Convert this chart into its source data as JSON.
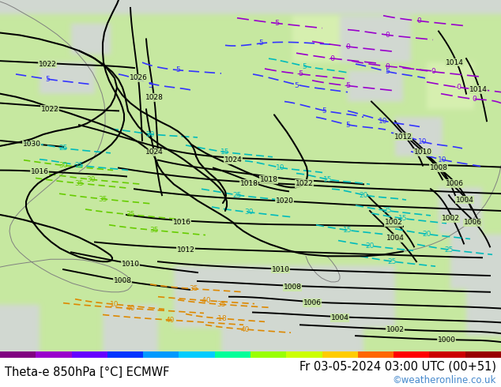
{
  "title_left": "Theta-e 850hPa [°C] ECMWF",
  "title_right": "Fr 03-05-2024 03:00 UTC (00+51)",
  "copyright": "©weatheronline.co.uk",
  "footer_bg": "#c8e8a0",
  "title_left_color": "#000000",
  "title_right_color": "#000000",
  "copyright_color": "#4488cc",
  "font_size_title": 10.5,
  "font_size_copyright": 8.5,
  "fig_width": 6.34,
  "fig_height": 4.9,
  "dpi": 100,
  "land_green": "#c8e8a0",
  "land_light_green": "#d8f0b0",
  "sea_gray": "#d0d8d0",
  "sea_light": "#e0e8e0",
  "colorbar_colors": [
    "#800080",
    "#9900cc",
    "#6600ff",
    "#0033ff",
    "#0099ff",
    "#00ccff",
    "#00ff99",
    "#99ff00",
    "#ccff00",
    "#ffcc00",
    "#ff6600",
    "#ff0000",
    "#cc0000",
    "#990000"
  ],
  "isobar_color": "#000000",
  "isobar_lw": 1.4,
  "theta_blue_color": "#3333ff",
  "theta_cyan_color": "#00bbbb",
  "theta_purple_color": "#9900cc",
  "theta_yellow_color": "#aaaa00",
  "theta_orange_color": "#dd8800",
  "theta_green_color": "#66cc00",
  "theta_lw": 1.2,
  "border_color": "#000000",
  "border_lw": 1.5,
  "coast_color": "#808080",
  "coast_lw": 0.7
}
